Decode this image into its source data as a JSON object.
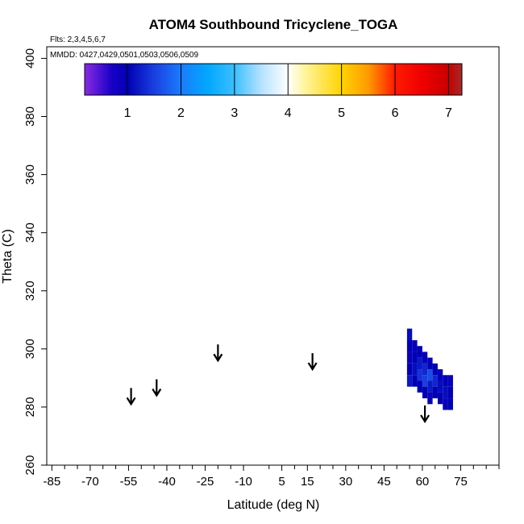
{
  "chart_data": {
    "type": "heatmap",
    "title": "ATOM4 Southbound Tricyclene_TOGA",
    "flights_label": "Flts: 2,3,4,5,6,7",
    "dates_label": "MMDD: 0427,0429,0501,0503,0506,0509",
    "xlabel": "Latitude (deg N)",
    "ylabel": "Theta (C)",
    "xlim": [
      -87,
      90
    ],
    "ylim": [
      260,
      404
    ],
    "x_ticks": [
      -85,
      -70,
      -55,
      -40,
      -25,
      -10,
      5,
      15,
      30,
      45,
      60,
      75
    ],
    "x_minor_ticks": [
      -80,
      -75,
      -65,
      -60,
      -50,
      -45,
      -35,
      -30,
      -20,
      -15,
      0,
      10,
      20,
      25,
      35,
      40,
      50,
      55,
      65,
      70,
      80,
      85,
      90
    ],
    "y_ticks": [
      260,
      280,
      300,
      320,
      340,
      360,
      380,
      400
    ],
    "colorbar": {
      "min": 0.2,
      "max": 7.25,
      "ticks": [
        1,
        2,
        3,
        4,
        5,
        6,
        7
      ],
      "stops": [
        {
          "value": 0.2,
          "color": "#8a2be2"
        },
        {
          "value": 0.7,
          "color": "#1a00c8"
        },
        {
          "value": 1.0,
          "color": "#0000b4"
        },
        {
          "value": 1.5,
          "color": "#1a3fe0"
        },
        {
          "value": 2.0,
          "color": "#1a7cff"
        },
        {
          "value": 2.5,
          "color": "#00a8ff"
        },
        {
          "value": 3.0,
          "color": "#3cbfff"
        },
        {
          "value": 3.5,
          "color": "#b5e2ff"
        },
        {
          "value": 4.0,
          "color": "#ffffff"
        },
        {
          "value": 4.3,
          "color": "#fff5a0"
        },
        {
          "value": 5.0,
          "color": "#ffd400"
        },
        {
          "value": 5.5,
          "color": "#ff9a00"
        },
        {
          "value": 6.0,
          "color": "#ff1a00"
        },
        {
          "value": 6.5,
          "color": "#f00000"
        },
        {
          "value": 7.0,
          "color": "#c80000"
        },
        {
          "value": 7.25,
          "color": "#a52a2a"
        }
      ]
    },
    "arrows": [
      {
        "lat": -54,
        "theta": 281
      },
      {
        "lat": -44,
        "theta": 284
      },
      {
        "lat": -20,
        "theta": 296
      },
      {
        "lat": 17,
        "theta": 293
      },
      {
        "lat": 61,
        "theta": 275
      }
    ],
    "cells": [
      {
        "lat": 55.0,
        "theta": 305,
        "value": 1.1
      },
      {
        "lat": 55.0,
        "theta": 301,
        "value": 1.0
      },
      {
        "lat": 55.0,
        "theta": 297,
        "value": 0.9
      },
      {
        "lat": 55.0,
        "theta": 293,
        "value": 1.0
      },
      {
        "lat": 55.0,
        "theta": 289,
        "value": 1.2
      },
      {
        "lat": 57.0,
        "theta": 301,
        "value": 0.9
      },
      {
        "lat": 57.0,
        "theta": 297,
        "value": 1.0
      },
      {
        "lat": 57.0,
        "theta": 293,
        "value": 1.1
      },
      {
        "lat": 57.0,
        "theta": 289,
        "value": 1.0
      },
      {
        "lat": 59.0,
        "theta": 299,
        "value": 1.0
      },
      {
        "lat": 59.0,
        "theta": 295,
        "value": 1.2
      },
      {
        "lat": 59.0,
        "theta": 291,
        "value": 1.4
      },
      {
        "lat": 59.0,
        "theta": 287,
        "value": 1.0
      },
      {
        "lat": 61.0,
        "theta": 297,
        "value": 0.9
      },
      {
        "lat": 61.0,
        "theta": 293,
        "value": 1.3
      },
      {
        "lat": 61.0,
        "theta": 289,
        "value": 1.5
      },
      {
        "lat": 61.0,
        "theta": 285,
        "value": 1.0
      },
      {
        "lat": 63.0,
        "theta": 295,
        "value": 1.0
      },
      {
        "lat": 63.0,
        "theta": 291,
        "value": 1.6
      },
      {
        "lat": 63.0,
        "theta": 287,
        "value": 1.2
      },
      {
        "lat": 63.0,
        "theta": 283,
        "value": 0.9
      },
      {
        "lat": 65.0,
        "theta": 293,
        "value": 1.0
      },
      {
        "lat": 65.0,
        "theta": 289,
        "value": 1.3
      },
      {
        "lat": 65.0,
        "theta": 285,
        "value": 1.0
      },
      {
        "lat": 67.0,
        "theta": 291,
        "value": 0.9
      },
      {
        "lat": 67.0,
        "theta": 287,
        "value": 1.1
      },
      {
        "lat": 67.0,
        "theta": 283,
        "value": 1.0
      },
      {
        "lat": 69.0,
        "theta": 289,
        "value": 1.0
      },
      {
        "lat": 69.0,
        "theta": 285,
        "value": 1.1
      },
      {
        "lat": 69.0,
        "theta": 281,
        "value": 0.9
      },
      {
        "lat": 71.0,
        "theta": 289,
        "value": 0.9
      },
      {
        "lat": 71.0,
        "theta": 285,
        "value": 1.0
      },
      {
        "lat": 71.0,
        "theta": 281,
        "value": 1.0
      }
    ]
  }
}
